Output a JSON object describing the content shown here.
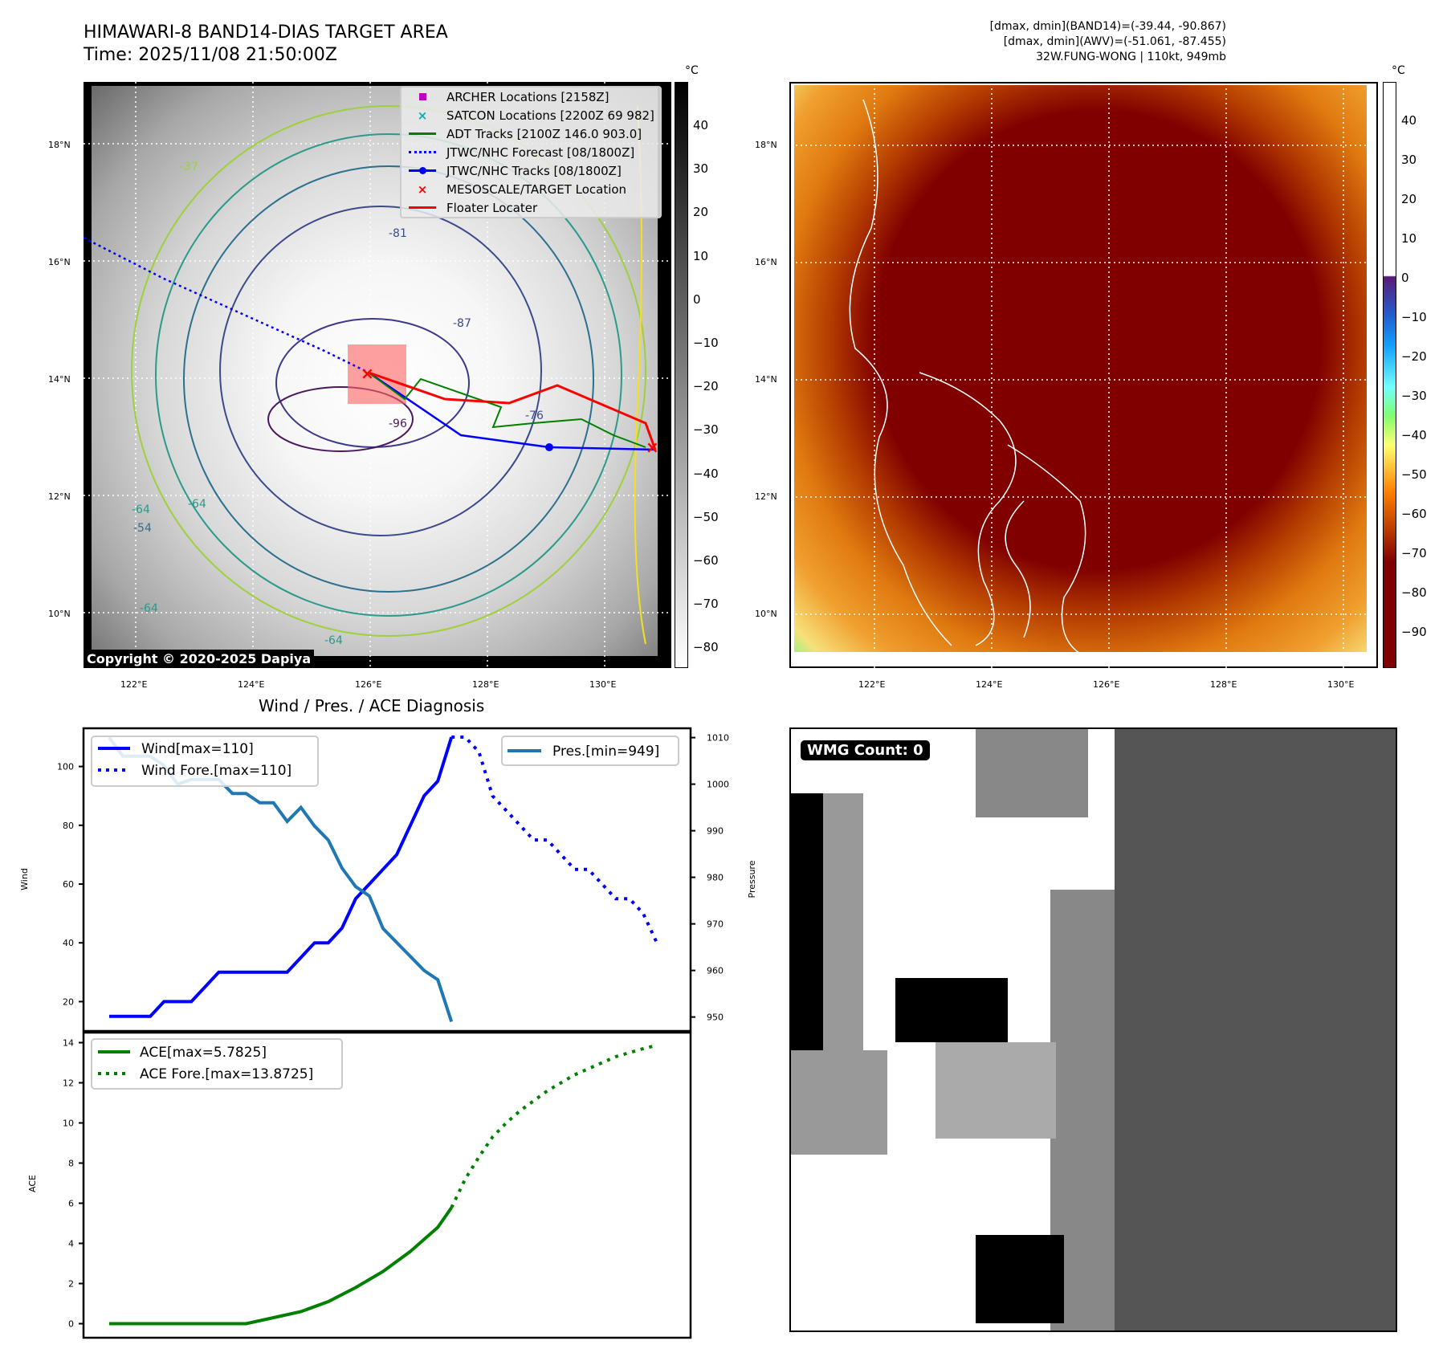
{
  "header": {
    "title_line1": "HIMAWARI-8 BAND14-DIAS TARGET AREA",
    "title_line2": "Time: 2025/11/08 21:50:00Z",
    "info_line1": "[dmax, dmin](BAND14)=(-39.44, -90.867)",
    "info_line2": "[dmax, dmin](AWV)=(-51.061, -87.455)",
    "info_line3": "32W.FUNG-WONG | 110kt, 949mb"
  },
  "map_left": {
    "lat_ticks": [
      "18°N",
      "16°N",
      "14°N",
      "12°N",
      "10°N"
    ],
    "lon_ticks": [
      "122°E",
      "124°E",
      "126°E",
      "128°E",
      "130°E"
    ],
    "copyright": "Copyright © 2020-2025 Dapiya",
    "colorbar_unit": "°C",
    "colorbar_ticks": [
      "40",
      "30",
      "20",
      "10",
      "0",
      "−10",
      "−20",
      "−30",
      "−40",
      "−50",
      "−60",
      "−70",
      "−80"
    ],
    "contour_labels": [
      "-81",
      "-87",
      "-76",
      "-64",
      "-64",
      "-54",
      "-64",
      "-64",
      "-37",
      "-96"
    ],
    "legend": [
      {
        "label": "ARCHER Locations [2158Z]",
        "symbol": "square-marker",
        "color": "#c000c0"
      },
      {
        "label": "SATCON Locations [2200Z 69 982]",
        "symbol": "x-marker",
        "color": "#00b0b0"
      },
      {
        "label": "ADT Tracks [2100Z 146.0 903.0]",
        "symbol": "solid-line",
        "color": "#008000"
      },
      {
        "label": "JTWC/NHC Forecast [08/1800Z]",
        "symbol": "dotted-line",
        "color": "#0000ff"
      },
      {
        "label": "JTWC/NHC Tracks [08/1800Z]",
        "symbol": "line-dot",
        "color": "#0000ff"
      },
      {
        "label": "MESOSCALE/TARGET Location",
        "symbol": "x-marker",
        "color": "#ff0000"
      },
      {
        "label": "Floater Locater",
        "symbol": "solid-line",
        "color": "#ff0000"
      }
    ]
  },
  "map_right": {
    "lat_ticks": [
      "18°N",
      "16°N",
      "14°N",
      "12°N",
      "10°N"
    ],
    "lon_ticks": [
      "122°E",
      "124°E",
      "126°E",
      "128°E",
      "130°E"
    ],
    "colorbar_unit": "°C",
    "colorbar_ticks": [
      "40",
      "30",
      "20",
      "10",
      "0",
      "−10",
      "−20",
      "−30",
      "−40",
      "−50",
      "−60",
      "−70",
      "−80",
      "−90"
    ]
  },
  "diagnosis": {
    "title": "Wind / Pres. / ACE Diagnosis"
  },
  "wmg": {
    "label": "WMG Count: 0"
  },
  "chart_data": [
    {
      "type": "line",
      "title": "Wind / Pres. / ACE Diagnosis",
      "ylabel": "Wind",
      "y2label": "Pressure",
      "ylim": [
        10,
        113
      ],
      "y2lim": [
        947,
        1012
      ],
      "yticks": [
        "20",
        "40",
        "60",
        "80",
        "100"
      ],
      "y2ticks": [
        "950",
        "960",
        "970",
        "980",
        "990",
        "1000",
        "1010"
      ],
      "legend_left": [
        "Wind[max=110]",
        "Wind Fore.[max=110]"
      ],
      "legend_right": [
        "Pres.[min=949]"
      ],
      "series": [
        {
          "name": "Wind",
          "axis": "left",
          "style": "solid",
          "color": "#0000ff",
          "x": [
            0,
            1,
            2,
            3,
            4,
            5,
            6,
            7,
            8,
            9,
            10,
            11,
            12,
            13,
            14,
            15,
            16,
            17,
            18,
            19,
            20,
            21,
            22,
            23,
            24,
            25
          ],
          "values": [
            15,
            15,
            15,
            15,
            20,
            20,
            20,
            25,
            30,
            30,
            30,
            30,
            30,
            30,
            35,
            40,
            40,
            45,
            55,
            60,
            65,
            70,
            80,
            90,
            95,
            110
          ]
        },
        {
          "name": "Wind Fore.",
          "axis": "left",
          "style": "dotted",
          "color": "#0000ff",
          "x": [
            25,
            26,
            27,
            28,
            29,
            30,
            31,
            32,
            33,
            34,
            35,
            36,
            37,
            38,
            39,
            40
          ],
          "values": [
            110,
            110,
            105,
            90,
            85,
            80,
            75,
            75,
            70,
            65,
            65,
            60,
            55,
            55,
            50,
            40
          ]
        },
        {
          "name": "Pres.",
          "axis": "right",
          "style": "solid",
          "color": "#1f77b4",
          "x": [
            0,
            1,
            2,
            3,
            4,
            5,
            6,
            7,
            8,
            9,
            10,
            11,
            12,
            13,
            14,
            15,
            16,
            17,
            18,
            19,
            20,
            21,
            22,
            23,
            24,
            25
          ],
          "values": [
            1010,
            1006,
            1006,
            1006,
            1004,
            1000,
            1001,
            1001,
            1001,
            998,
            998,
            996,
            996,
            992,
            995,
            991,
            988,
            982,
            978,
            976,
            969,
            966,
            963,
            960,
            958,
            949
          ]
        }
      ]
    },
    {
      "type": "line",
      "ylabel": "ACE",
      "ylim": [
        -0.7,
        14.5
      ],
      "yticks": [
        "0",
        "2",
        "4",
        "6",
        "8",
        "10",
        "12",
        "14"
      ],
      "legend": [
        "ACE[max=5.7825]",
        "ACE Fore.[max=13.8725]"
      ],
      "series": [
        {
          "name": "ACE",
          "style": "solid",
          "color": "#008000",
          "x": [
            0,
            2,
            4,
            6,
            8,
            10,
            12,
            14,
            16,
            18,
            20,
            22,
            24,
            25
          ],
          "values": [
            0,
            0,
            0,
            0,
            0,
            0,
            0.3,
            0.6,
            1.1,
            1.8,
            2.6,
            3.6,
            4.8,
            5.78
          ]
        },
        {
          "name": "ACE Fore.",
          "style": "dotted",
          "color": "#008000",
          "x": [
            25,
            26,
            27,
            28,
            29,
            30,
            31,
            32,
            33,
            34,
            35,
            36,
            37,
            38,
            39,
            40
          ],
          "values": [
            5.78,
            7.2,
            8.3,
            9.3,
            10.0,
            10.6,
            11.1,
            11.6,
            12.0,
            12.4,
            12.7,
            13.0,
            13.3,
            13.5,
            13.7,
            13.87
          ]
        }
      ]
    }
  ]
}
